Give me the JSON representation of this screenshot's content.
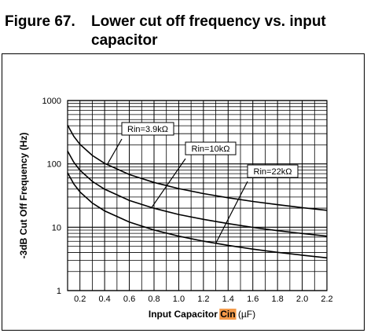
{
  "figure": {
    "number": "Figure 67.",
    "title_line1": "Lower cut off frequency vs. input",
    "title_line2": "capacitor"
  },
  "chart_data": {
    "type": "line",
    "x_scale": "linear",
    "y_scale": "log",
    "xlim": [
      0.1,
      2.2
    ],
    "ylim": [
      1,
      1000
    ],
    "x_ticks": [
      0.2,
      0.4,
      0.6,
      0.8,
      1.0,
      1.2,
      1.4,
      1.6,
      1.8,
      2.0,
      2.2
    ],
    "x_tick_labels": [
      "0.2",
      "0.4",
      "0.6",
      "0.8",
      "1.0",
      "1.2",
      "1.4",
      "1.6",
      "1.8",
      "2.0",
      "2.2"
    ],
    "y_ticks": [
      1,
      10,
      100,
      1000
    ],
    "y_tick_labels": [
      "1",
      "10",
      "100",
      "1000"
    ],
    "xlabel_prefix": "Input Capacitor ",
    "xlabel_highlight": "Cin",
    "xlabel_suffix": " (µF)",
    "highlight_color": "#f39a4a",
    "ylabel": "-3dB Cut Off Frequency (Hz)",
    "grid": true,
    "series": [
      {
        "name": "Rin=3.9kΩ",
        "x": [
          0.1,
          0.15,
          0.2,
          0.3,
          0.4,
          0.6,
          0.8,
          1.0,
          1.2,
          1.4,
          1.6,
          1.8,
          2.0,
          2.2
        ],
        "y": [
          408,
          272,
          204,
          136,
          102,
          68,
          51,
          40.8,
          34,
          29.2,
          25.5,
          22.7,
          20.4,
          18.5
        ]
      },
      {
        "name": "Rin=10kΩ",
        "x": [
          0.1,
          0.15,
          0.2,
          0.3,
          0.4,
          0.6,
          0.8,
          1.0,
          1.2,
          1.4,
          1.6,
          1.8,
          2.0,
          2.2
        ],
        "y": [
          159,
          106,
          79.6,
          53,
          39.8,
          26.5,
          19.9,
          15.9,
          13.3,
          11.4,
          9.95,
          8.84,
          7.96,
          7.23
        ]
      },
      {
        "name": "Rin=22kΩ",
        "x": [
          0.1,
          0.15,
          0.2,
          0.3,
          0.4,
          0.6,
          0.8,
          1.0,
          1.2,
          1.4,
          1.6,
          1.8,
          2.0,
          2.2
        ],
        "y": [
          72.3,
          48.2,
          36.2,
          24.1,
          18.1,
          12.1,
          9.04,
          7.23,
          6.03,
          5.17,
          4.52,
          4.02,
          3.62,
          3.29
        ]
      }
    ],
    "annotations": [
      {
        "text": "Rin=3.9kΩ",
        "series": 0
      },
      {
        "text": "Rin=10kΩ",
        "series": 1
      },
      {
        "text": "Rin=22kΩ",
        "series": 2
      }
    ]
  }
}
